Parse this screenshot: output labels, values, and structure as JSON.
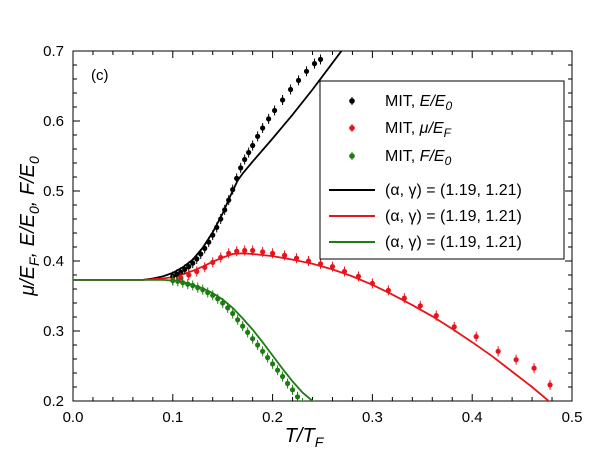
{
  "chart_data": {
    "type": "scatter",
    "panel_label": "(c)",
    "xlabel": {
      "main": "T/T",
      "sub": "F"
    },
    "ylabel": [
      {
        "main": "μ/E",
        "sub": "F"
      },
      {
        "main": ", E/E",
        "sub": "0"
      },
      {
        "main": ", F/E",
        "sub": "0"
      }
    ],
    "xlim": [
      0.0,
      0.5
    ],
    "ylim": [
      0.2,
      0.7
    ],
    "xticks": [
      0.0,
      0.1,
      0.2,
      0.3,
      0.4,
      0.5
    ],
    "xtick_labels": [
      "0.0",
      "0.1",
      "0.2",
      "0.3",
      "0.4",
      "0.5"
    ],
    "yticks": [
      0.2,
      0.3,
      0.4,
      0.5,
      0.6,
      0.7
    ],
    "ytick_labels": [
      "0.2",
      "0.3",
      "0.4",
      "0.5",
      "0.6",
      "0.7"
    ],
    "grid": false,
    "legend_position": "top-right",
    "legend": [
      {
        "marker": "dot",
        "color": "#000000",
        "prefix": "MIT, ",
        "math": "E/E",
        "sub": "0"
      },
      {
        "marker": "dot",
        "color": "#e8141c",
        "prefix": "MIT, ",
        "math": "μ/E",
        "sub": "F"
      },
      {
        "marker": "dot",
        "color": "#1b7d12",
        "prefix": "MIT, ",
        "math": "F/E",
        "sub": "0"
      },
      {
        "marker": "line",
        "color": "#000000",
        "prefix": "(α, γ) = (1.19, 1.21)"
      },
      {
        "marker": "line",
        "color": "#e8141c",
        "prefix": "(α, γ) = (1.19, 1.21)"
      },
      {
        "marker": "line",
        "color": "#1b7d12",
        "prefix": "(α, γ) = (1.19, 1.21)"
      }
    ],
    "series": [
      {
        "name": "MIT, E/E0",
        "kind": "points",
        "color": "#000000",
        "points": [
          [
            0.1,
            0.378
          ],
          [
            0.104,
            0.381
          ],
          [
            0.108,
            0.384
          ],
          [
            0.112,
            0.388
          ],
          [
            0.116,
            0.392
          ],
          [
            0.12,
            0.397
          ],
          [
            0.124,
            0.403
          ],
          [
            0.128,
            0.41
          ],
          [
            0.132,
            0.418
          ],
          [
            0.136,
            0.427
          ],
          [
            0.14,
            0.437
          ],
          [
            0.144,
            0.448
          ],
          [
            0.148,
            0.46
          ],
          [
            0.152,
            0.473
          ],
          [
            0.156,
            0.487
          ],
          [
            0.16,
            0.502
          ],
          [
            0.164,
            0.518
          ],
          [
            0.168,
            0.533
          ],
          [
            0.172,
            0.545
          ],
          [
            0.176,
            0.555
          ],
          [
            0.18,
            0.565
          ],
          [
            0.185,
            0.578
          ],
          [
            0.19,
            0.59
          ],
          [
            0.196,
            0.603
          ],
          [
            0.202,
            0.615
          ],
          [
            0.21,
            0.63
          ],
          [
            0.218,
            0.645
          ],
          [
            0.226,
            0.658
          ],
          [
            0.234,
            0.671
          ],
          [
            0.242,
            0.682
          ],
          [
            0.248,
            0.688
          ]
        ]
      },
      {
        "name": "MIT, μ/EF",
        "kind": "points",
        "color": "#e8141c",
        "points": [
          [
            0.1,
            0.373
          ],
          [
            0.108,
            0.376
          ],
          [
            0.116,
            0.38
          ],
          [
            0.124,
            0.385
          ],
          [
            0.132,
            0.391
          ],
          [
            0.14,
            0.398
          ],
          [
            0.148,
            0.405
          ],
          [
            0.156,
            0.411
          ],
          [
            0.164,
            0.414
          ],
          [
            0.172,
            0.415
          ],
          [
            0.18,
            0.415
          ],
          [
            0.19,
            0.413
          ],
          [
            0.2,
            0.411
          ],
          [
            0.212,
            0.408
          ],
          [
            0.224,
            0.404
          ],
          [
            0.236,
            0.4
          ],
          [
            0.248,
            0.396
          ],
          [
            0.26,
            0.392
          ],
          [
            0.272,
            0.385
          ],
          [
            0.286,
            0.378
          ],
          [
            0.3,
            0.368
          ],
          [
            0.316,
            0.358
          ],
          [
            0.332,
            0.347
          ],
          [
            0.348,
            0.336
          ],
          [
            0.364,
            0.322
          ],
          [
            0.382,
            0.306
          ],
          [
            0.404,
            0.292
          ],
          [
            0.426,
            0.271
          ],
          [
            0.444,
            0.259
          ],
          [
            0.462,
            0.247
          ],
          [
            0.478,
            0.223
          ]
        ]
      },
      {
        "name": "MIT, F/E0",
        "kind": "points",
        "color": "#1b7d12",
        "points": [
          [
            0.1,
            0.372
          ],
          [
            0.105,
            0.371
          ],
          [
            0.11,
            0.369
          ],
          [
            0.115,
            0.367
          ],
          [
            0.12,
            0.365
          ],
          [
            0.125,
            0.362
          ],
          [
            0.13,
            0.359
          ],
          [
            0.135,
            0.355
          ],
          [
            0.14,
            0.351
          ],
          [
            0.145,
            0.346
          ],
          [
            0.15,
            0.34
          ],
          [
            0.155,
            0.333
          ],
          [
            0.16,
            0.325
          ],
          [
            0.165,
            0.316
          ],
          [
            0.17,
            0.307
          ],
          [
            0.175,
            0.298
          ],
          [
            0.18,
            0.289
          ],
          [
            0.185,
            0.28
          ],
          [
            0.19,
            0.271
          ],
          [
            0.195,
            0.262
          ],
          [
            0.2,
            0.253
          ],
          [
            0.205,
            0.244
          ],
          [
            0.21,
            0.235
          ],
          [
            0.215,
            0.225
          ],
          [
            0.22,
            0.216
          ],
          [
            0.225,
            0.206
          ],
          [
            0.23,
            0.197
          ],
          [
            0.235,
            0.187
          ],
          [
            0.24,
            0.178
          ],
          [
            0.245,
            0.168
          ],
          [
            0.25,
            0.159
          ]
        ]
      },
      {
        "name": "(α, γ) = (1.19, 1.21) E/E0",
        "kind": "line",
        "color": "#000000",
        "points": [
          [
            0.0,
            0.373
          ],
          [
            0.05,
            0.373
          ],
          [
            0.07,
            0.373
          ],
          [
            0.08,
            0.375
          ],
          [
            0.09,
            0.378
          ],
          [
            0.1,
            0.383
          ],
          [
            0.11,
            0.391
          ],
          [
            0.12,
            0.402
          ],
          [
            0.13,
            0.419
          ],
          [
            0.14,
            0.441
          ],
          [
            0.15,
            0.468
          ],
          [
            0.158,
            0.494
          ],
          [
            0.165,
            0.515
          ],
          [
            0.17,
            0.525
          ],
          [
            0.18,
            0.542
          ],
          [
            0.2,
            0.575
          ],
          [
            0.22,
            0.609
          ],
          [
            0.24,
            0.645
          ],
          [
            0.26,
            0.683
          ],
          [
            0.27,
            0.702
          ]
        ]
      },
      {
        "name": "(α, γ) = (1.19, 1.21) μ/EF",
        "kind": "line",
        "color": "#e8141c",
        "points": [
          [
            0.0,
            0.373
          ],
          [
            0.05,
            0.373
          ],
          [
            0.07,
            0.373
          ],
          [
            0.09,
            0.375
          ],
          [
            0.1,
            0.377
          ],
          [
            0.11,
            0.381
          ],
          [
            0.12,
            0.386
          ],
          [
            0.13,
            0.392
          ],
          [
            0.14,
            0.399
          ],
          [
            0.15,
            0.405
          ],
          [
            0.16,
            0.41
          ],
          [
            0.17,
            0.411
          ],
          [
            0.18,
            0.41
          ],
          [
            0.2,
            0.407
          ],
          [
            0.22,
            0.402
          ],
          [
            0.24,
            0.396
          ],
          [
            0.26,
            0.388
          ],
          [
            0.28,
            0.378
          ],
          [
            0.3,
            0.366
          ],
          [
            0.32,
            0.352
          ],
          [
            0.34,
            0.337
          ],
          [
            0.36,
            0.321
          ],
          [
            0.38,
            0.303
          ],
          [
            0.4,
            0.284
          ],
          [
            0.42,
            0.264
          ],
          [
            0.44,
            0.242
          ],
          [
            0.46,
            0.22
          ],
          [
            0.48,
            0.196
          ]
        ]
      },
      {
        "name": "(α, γ) = (1.19, 1.21) F/E0",
        "kind": "line",
        "color": "#1b7d12",
        "points": [
          [
            0.0,
            0.373
          ],
          [
            0.05,
            0.373
          ],
          [
            0.07,
            0.373
          ],
          [
            0.09,
            0.373
          ],
          [
            0.1,
            0.372
          ],
          [
            0.11,
            0.37
          ],
          [
            0.12,
            0.366
          ],
          [
            0.13,
            0.361
          ],
          [
            0.14,
            0.354
          ],
          [
            0.15,
            0.345
          ],
          [
            0.16,
            0.333
          ],
          [
            0.17,
            0.318
          ],
          [
            0.18,
            0.302
          ],
          [
            0.19,
            0.284
          ],
          [
            0.2,
            0.265
          ],
          [
            0.21,
            0.246
          ],
          [
            0.22,
            0.228
          ],
          [
            0.23,
            0.212
          ],
          [
            0.24,
            0.2
          ],
          [
            0.248,
            0.192
          ]
        ]
      }
    ]
  }
}
